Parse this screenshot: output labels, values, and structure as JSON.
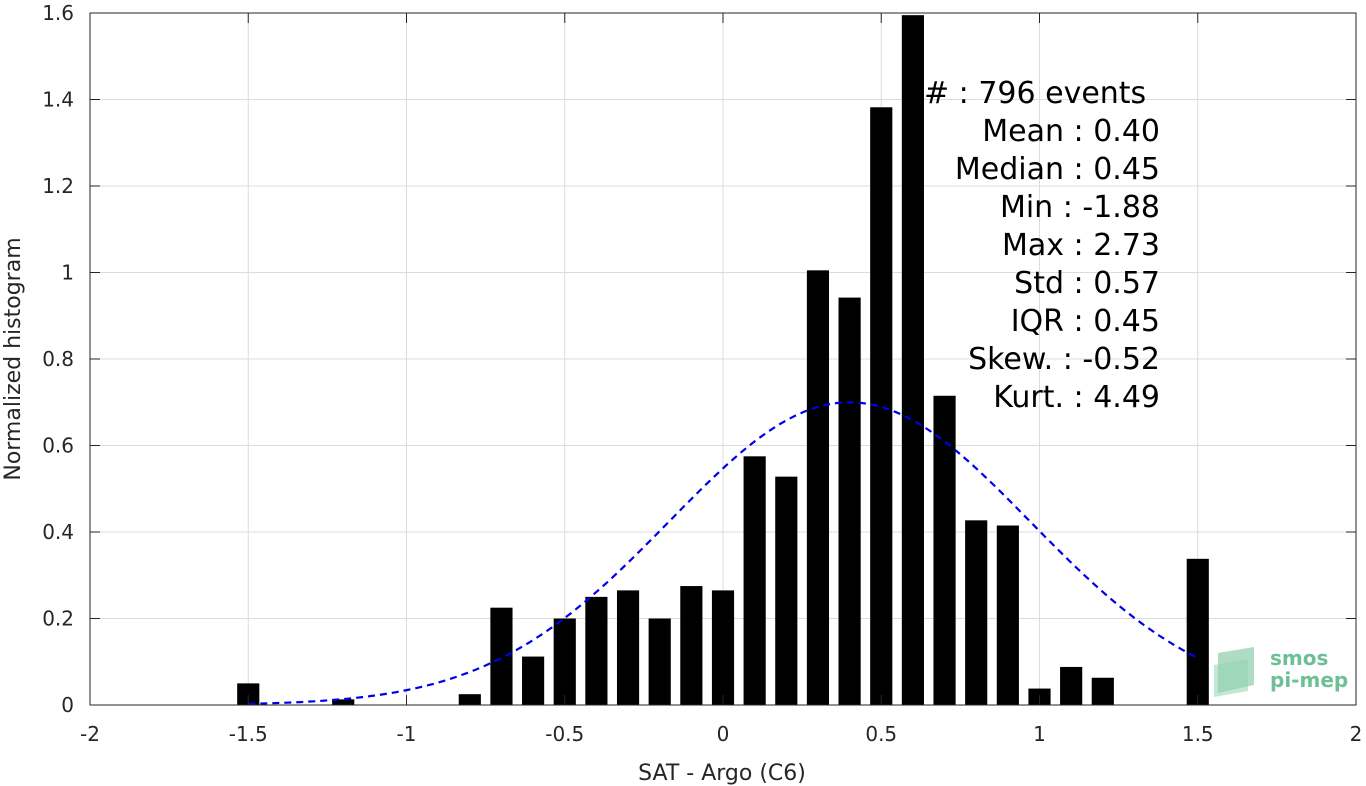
{
  "chart_data": {
    "type": "bar",
    "title": "",
    "xlabel": "SAT - Argo (C6)",
    "ylabel": "Normalized histogram",
    "xlim": [
      -2,
      2
    ],
    "ylim": [
      0,
      1.6
    ],
    "xticks": [
      -2,
      -1.5,
      -1,
      -0.5,
      0,
      0.5,
      1,
      1.5,
      2
    ],
    "xtick_labels": [
      "-2",
      "-1.5",
      "-1",
      "-0.5",
      "0",
      "0.5",
      "1",
      "1.5",
      "2"
    ],
    "yticks": [
      0,
      0.2,
      0.4,
      0.6,
      0.8,
      1,
      1.2,
      1.4,
      1.6
    ],
    "ytick_labels": [
      "0",
      "0.2",
      "0.4",
      "0.6",
      "0.8",
      "1",
      "1.2",
      "1.4",
      "1.6"
    ],
    "grid": true,
    "bar_width": 0.07,
    "bar_color": "#000000",
    "bars": {
      "x": [
        -1.5,
        -1.2,
        -0.8,
        -0.7,
        -0.6,
        -0.5,
        -0.4,
        -0.3,
        -0.2,
        -0.1,
        0.0,
        0.1,
        0.2,
        0.3,
        0.4,
        0.5,
        0.6,
        0.7,
        0.8,
        0.9,
        1.0,
        1.1,
        1.2,
        1.5
      ],
      "values": [
        0.05,
        0.013,
        0.025,
        0.225,
        0.112,
        0.2,
        0.25,
        0.265,
        0.2,
        0.275,
        0.265,
        0.575,
        0.528,
        1.005,
        0.942,
        1.382,
        1.595,
        0.715,
        0.427,
        0.415,
        0.038,
        0.088,
        0.063,
        0.338
      ]
    },
    "fit_curve": {
      "type": "normal",
      "mean": 0.4,
      "std": 0.57,
      "x_range": [
        -1.5,
        1.5
      ],
      "color": "#0000ee",
      "style": "dashed"
    },
    "stats": [
      {
        "label": "#  : 796 events",
        "anchor": "start"
      },
      {
        "label": "Mean : 0.40",
        "anchor": "end"
      },
      {
        "label": "Median : 0.45",
        "anchor": "end"
      },
      {
        "label": "Min : -1.88",
        "anchor": "end"
      },
      {
        "label": "Max : 2.73",
        "anchor": "end"
      },
      {
        "label": "Std : 0.57",
        "anchor": "end"
      },
      {
        "label": "IQR : 0.45",
        "anchor": "end"
      },
      {
        "label": "Skew. : -0.52",
        "anchor": "end"
      },
      {
        "label": "Kurt. : 4.49",
        "anchor": "end"
      }
    ]
  },
  "logo": {
    "line1": "smos",
    "line2": "pi-mep",
    "color": "#6dbf95"
  }
}
